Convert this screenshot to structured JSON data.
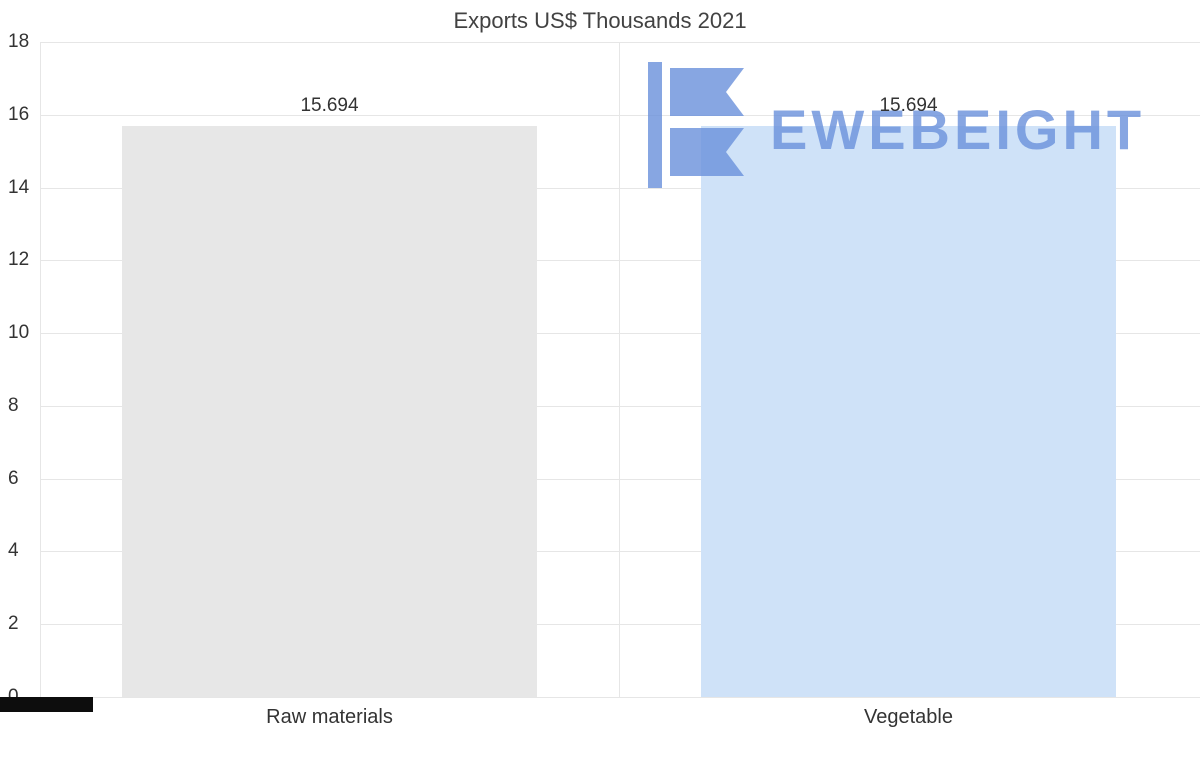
{
  "title": "Exports US$ Thousands 2021",
  "watermark": {
    "text": "EWEBEIGHT",
    "color": "#6d93dc"
  },
  "colors": {
    "gridline": "#e6e6e6",
    "title_text": "#424242",
    "axis_text": "#333333",
    "axis_strip": "#0d0d0d"
  },
  "chart_data": {
    "type": "bar",
    "title": "Exports US$ Thousands 2021",
    "categories": [
      "Raw materials",
      "Vegetable"
    ],
    "values": [
      15.694,
      15.694
    ],
    "value_labels": [
      "15.694",
      "15.694"
    ],
    "bar_colors": [
      "#e7e7e7",
      "#cfe2f8"
    ],
    "xlabel": "",
    "ylabel": "",
    "ylim": [
      0,
      18
    ],
    "yticks": [
      0,
      2,
      4,
      6,
      8,
      10,
      12,
      14,
      16,
      18
    ],
    "grid": true,
    "legend": "none"
  }
}
